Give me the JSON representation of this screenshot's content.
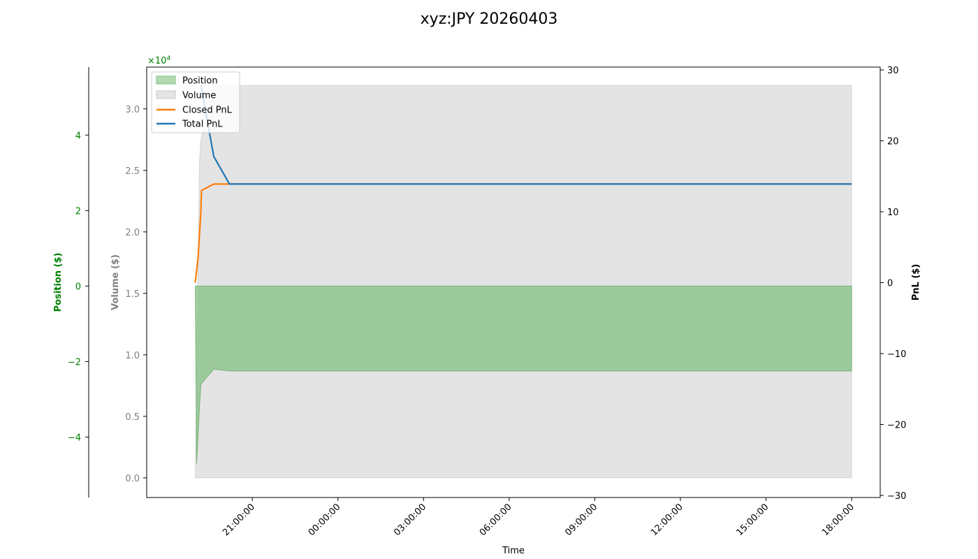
{
  "chart_data": {
    "type": "area",
    "title": "xyz:JPY 20260403",
    "xlabel": "Time",
    "x_tick_labels": [
      "21:00:00",
      "00:00:00",
      "03:00:00",
      "06:00:00",
      "09:00:00",
      "12:00:00",
      "15:00:00",
      "18:00:00"
    ],
    "x_tick_hours": [
      21,
      24,
      27,
      30,
      33,
      36,
      39,
      42
    ],
    "xlim_hours": [
      17.3,
      43.0
    ],
    "position_axis": {
      "label": "Position ($)",
      "color": "#008000",
      "multiplier_label": "×10",
      "multiplier_exp": "4",
      "ylim": [
        -5.6,
        5.8
      ],
      "ticks": [
        -4,
        -2,
        0,
        2,
        4
      ],
      "tick_labels": [
        "−4",
        "−2",
        "0",
        "2",
        "4"
      ]
    },
    "volume_axis": {
      "label": "Volume ($)",
      "color": "#808080",
      "ylim": [
        -1600,
        33400
      ],
      "ticks": [
        0,
        5000,
        10000,
        15000,
        20000,
        25000,
        30000
      ],
      "tick_labels": [
        "0.0",
        "0.5",
        "1.0",
        "1.5",
        "2.0",
        "2.5",
        "3.0"
      ]
    },
    "pnl_axis": {
      "label": "PnL ($)",
      "color": "#000000",
      "ylim": [
        -30.3,
        30.4
      ],
      "ticks": [
        -30,
        -20,
        -10,
        0,
        10,
        20,
        30
      ],
      "tick_labels": [
        "−30",
        "−20",
        "−10",
        "0",
        "10",
        "20",
        "30"
      ]
    },
    "series": [
      {
        "name": "Position",
        "kind": "area",
        "axis": "position",
        "color": "#7fbf7f",
        "x_hours": [
          19.0,
          19.05,
          19.1,
          19.15,
          19.2,
          19.65,
          20.2,
          42.0
        ],
        "values": [
          0,
          -4.7,
          -4.0,
          -3.2,
          -2.6,
          -2.2,
          -2.25,
          -2.25
        ]
      },
      {
        "name": "Volume",
        "kind": "area",
        "axis": "volume",
        "color": "#d3d3d3",
        "x_hours": [
          19.0,
          19.15,
          19.2,
          19.65,
          20.2,
          42.0
        ],
        "values": [
          0,
          25700,
          27500,
          31900,
          31900,
          31900
        ]
      },
      {
        "name": "Closed PnL",
        "kind": "line",
        "axis": "pnl",
        "color": "#ff7f0e",
        "x_hours": [
          19.0,
          19.1,
          19.2,
          19.22,
          19.65,
          20.2,
          42.0
        ],
        "values": [
          0,
          3.5,
          10.1,
          13.0,
          13.9,
          13.9,
          13.9
        ]
      },
      {
        "name": "Total PnL",
        "kind": "line",
        "axis": "pnl",
        "color": "#1f77b4",
        "x_hours": [
          19.2,
          19.65,
          20.2,
          42.0
        ],
        "values": [
          27.9,
          17.8,
          13.9,
          13.9
        ]
      }
    ],
    "legend_position": "upper-left",
    "grid": false
  }
}
